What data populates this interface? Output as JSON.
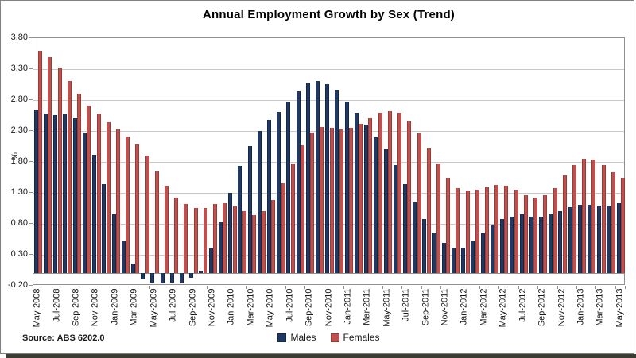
{
  "window": {
    "background": "#FFFFFF",
    "frame_border_color": "#808080",
    "shadow_color": "#3C3C33"
  },
  "chart_data": {
    "type": "bar",
    "title": "Annual Employment Growth by Sex (Trend)",
    "ylabel": "%",
    "xlabel": "",
    "ylim": [
      -0.2,
      3.8
    ],
    "y_ticks": [
      "3.80",
      "3.30",
      "2.80",
      "2.30",
      "1.80",
      "1.30",
      "0.80",
      "0.30",
      "-0.20"
    ],
    "grid": "horizontal",
    "gridline_color": "#C9C9C9",
    "axis_line_color": "#8F8F8F",
    "legend_position": "bottom",
    "source_note": "Source: ABS 6202.0",
    "x_tick_labels": [
      "May-2008",
      "Jul-2008",
      "Sep-2008",
      "Nov-2008",
      "Jan-2009",
      "Mar-2009",
      "May-2009",
      "Jul-2009",
      "Sep-2009",
      "Nov-2009",
      "Jan-2010",
      "Mar-2010",
      "May-2010",
      "Jul-2010",
      "Sep-2010",
      "Nov-2010",
      "Jan-2011",
      "Mar-2011",
      "May-2011",
      "Jul-2011",
      "Sep-2011",
      "Nov-2011",
      "Jan-2012",
      "Mar-2012",
      "May-2012",
      "Jul-2012",
      "Sep-2012",
      "Nov-2012",
      "Jan-2013",
      "Mar-2013",
      "May-2013"
    ],
    "categories": [
      "May-2008",
      "Jun-2008",
      "Jul-2008",
      "Aug-2008",
      "Sep-2008",
      "Oct-2008",
      "Nov-2008",
      "Dec-2008",
      "Jan-2009",
      "Feb-2009",
      "Mar-2009",
      "Apr-2009",
      "May-2009",
      "Jun-2009",
      "Jul-2009",
      "Aug-2009",
      "Sep-2009",
      "Oct-2009",
      "Nov-2009",
      "Dec-2009",
      "Jan-2010",
      "Feb-2010",
      "Mar-2010",
      "Apr-2010",
      "May-2010",
      "Jun-2010",
      "Jul-2010",
      "Aug-2010",
      "Sep-2010",
      "Oct-2010",
      "Nov-2010",
      "Dec-2010",
      "Jan-2011",
      "Feb-2011",
      "Mar-2011",
      "Apr-2011",
      "May-2011",
      "Jun-2011",
      "Jul-2011",
      "Aug-2011",
      "Sep-2011",
      "Oct-2011",
      "Nov-2011",
      "Dec-2011",
      "Jan-2012",
      "Feb-2012",
      "Mar-2012",
      "Apr-2012",
      "May-2012",
      "Jun-2012",
      "Jul-2012",
      "Aug-2012",
      "Sep-2012",
      "Oct-2012",
      "Nov-2012",
      "Dec-2012",
      "Jan-2013",
      "Feb-2013",
      "Mar-2013",
      "Apr-2013",
      "May-2013"
    ],
    "series": [
      {
        "name": "Males",
        "color": "#1F3864",
        "border_color": "#142745",
        "values": [
          2.65,
          2.58,
          2.56,
          2.57,
          2.5,
          2.28,
          1.92,
          1.44,
          0.96,
          0.52,
          0.16,
          -0.1,
          -0.15,
          -0.16,
          -0.15,
          -0.15,
          -0.07,
          0.05,
          0.4,
          0.83,
          1.3,
          1.74,
          2.06,
          2.3,
          2.48,
          2.61,
          2.77,
          2.94,
          3.07,
          3.11,
          3.06,
          2.95,
          2.78,
          2.6,
          2.4,
          2.2,
          2.0,
          1.75,
          1.44,
          1.15,
          0.88,
          0.65,
          0.49,
          0.41,
          0.42,
          0.52,
          0.65,
          0.77,
          0.88,
          0.92,
          0.95,
          0.92,
          0.91,
          0.95,
          1.01,
          1.07,
          1.11,
          1.11,
          1.09,
          1.1,
          1.13
        ]
      },
      {
        "name": "Females",
        "color": "#C0504D",
        "border_color": "#983C39",
        "values": [
          3.6,
          3.49,
          3.31,
          3.11,
          2.9,
          2.71,
          2.58,
          2.44,
          2.33,
          2.21,
          2.08,
          1.9,
          1.65,
          1.41,
          1.23,
          1.12,
          1.06,
          1.06,
          1.12,
          1.14,
          1.08,
          1.01,
          0.94,
          1.01,
          1.18,
          1.45,
          1.77,
          2.07,
          2.28,
          2.36,
          2.35,
          2.32,
          2.35,
          2.42,
          2.5,
          2.6,
          2.62,
          2.59,
          2.46,
          2.26,
          2.02,
          1.77,
          1.54,
          1.38,
          1.34,
          1.35,
          1.39,
          1.43,
          1.41,
          1.35,
          1.26,
          1.22,
          1.26,
          1.38,
          1.58,
          1.75,
          1.85,
          1.84,
          1.75,
          1.63,
          1.54
        ]
      }
    ]
  }
}
